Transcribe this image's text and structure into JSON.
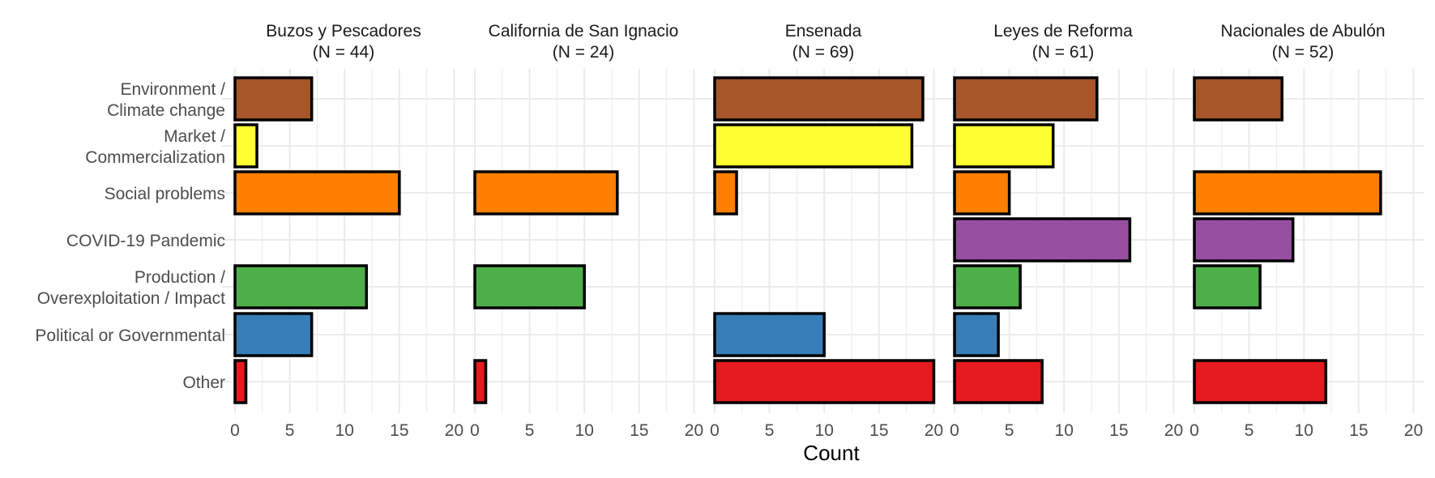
{
  "chart_data": {
    "type": "bar",
    "orientation": "horizontal",
    "xlabel": "Count",
    "ylabel": "",
    "xlim": [
      0,
      21
    ],
    "xticks": [
      0,
      5,
      10,
      15,
      20
    ],
    "grid": true,
    "legend": "none",
    "categories": [
      "Environment /\nClimate change",
      "Market /\nCommercialization",
      "Social problems",
      "COVID-19 Pandemic",
      "Production /\nOverexploitation / Impact",
      "Political or Governmental",
      "Other"
    ],
    "category_colors": [
      "#A65628",
      "#FFFF33",
      "#FF7F00",
      "#984EA3",
      "#4DAF4A",
      "#377EB8",
      "#E41A1C"
    ],
    "facets": [
      {
        "title": "Buzos y Pescadores",
        "subtitle": "(N = 44)",
        "values": [
          7,
          2,
          15,
          0,
          12,
          7,
          1
        ]
      },
      {
        "title": "California de San Ignacio",
        "subtitle": "(N = 24)",
        "values": [
          0,
          0,
          13,
          0,
          10,
          0,
          1
        ]
      },
      {
        "title": "Ensenada",
        "subtitle": "(N = 69)",
        "values": [
          19,
          18,
          2,
          0,
          0,
          10,
          20
        ]
      },
      {
        "title": "Leyes de Reforma",
        "subtitle": "(N = 61)",
        "values": [
          13,
          9,
          5,
          16,
          6,
          4,
          8
        ]
      },
      {
        "title": "Nacionales de Abulón",
        "subtitle": "(N = 52)",
        "values": [
          8,
          0,
          17,
          9,
          6,
          0,
          12
        ]
      }
    ]
  }
}
